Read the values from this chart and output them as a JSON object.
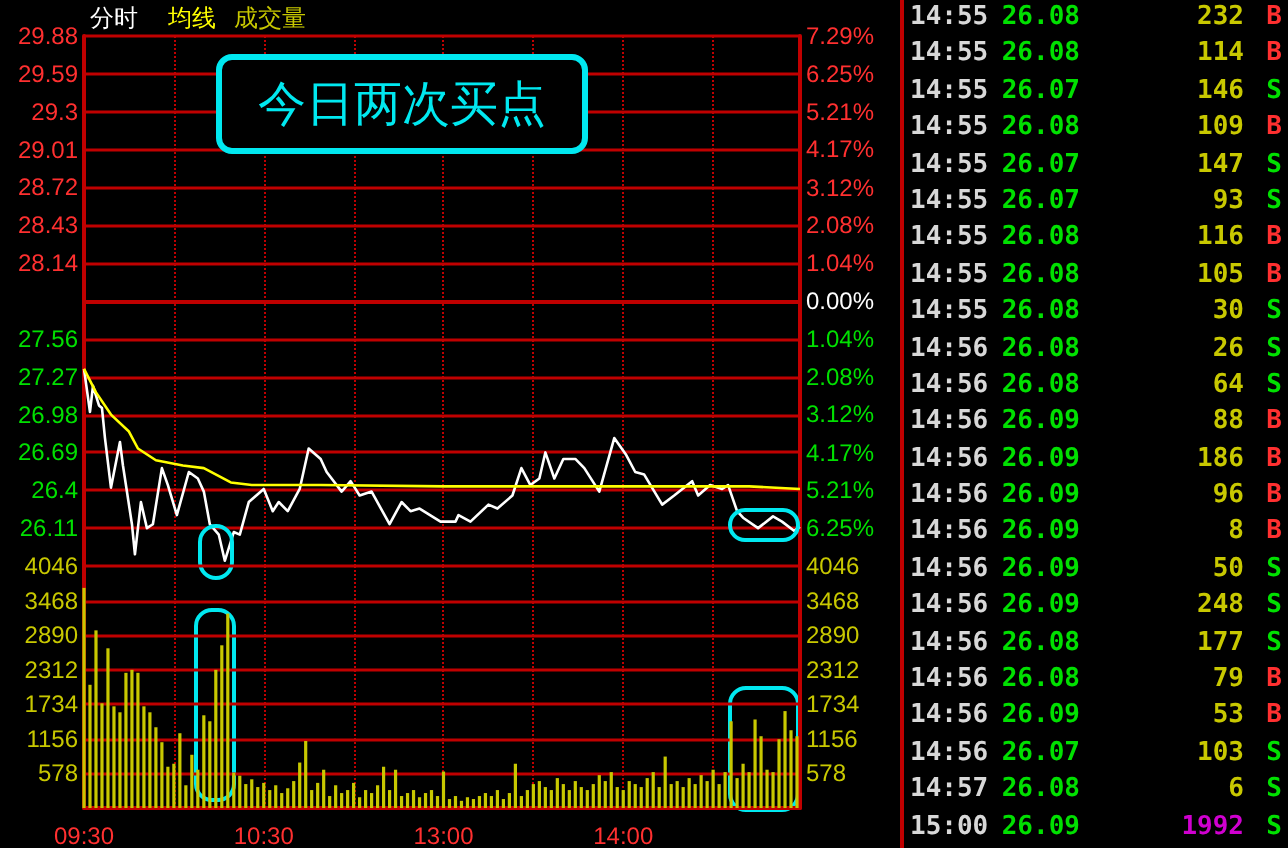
{
  "chart_data": [
    {
      "type": "line",
      "legend": "top left",
      "grid": true,
      "tick_labels": "y",
      "annotations": [
        "今日两次买点"
      ],
      "categories": [
        null,
        null,
        null,
        null,
        null,
        null,
        null,
        null,
        null,
        null,
        null,
        null,
        null,
        null,
        null,
        null,
        null,
        null,
        null,
        null,
        null,
        null,
        null,
        null,
        null,
        null,
        null,
        null,
        null,
        null,
        null,
        null,
        null,
        null,
        null,
        null,
        null,
        null,
        null,
        null,
        null,
        null,
        null,
        null,
        null,
        null,
        null,
        null,
        null,
        null,
        null,
        null,
        null,
        null,
        null,
        null,
        null,
        null,
        null,
        null,
        null,
        null,
        null,
        null,
        null,
        null,
        null,
        null,
        null,
        null,
        null,
        null,
        null,
        null,
        null,
        null,
        null,
        null,
        null,
        null,
        null,
        null,
        null,
        null,
        null,
        null,
        null,
        null,
        null,
        null,
        null,
        null,
        null,
        null,
        null,
        null,
        null,
        null,
        null,
        null,
        null,
        null,
        null,
        null,
        null,
        null,
        null,
        null,
        null,
        null,
        null,
        null,
        null,
        null,
        null,
        null,
        null,
        null,
        null,
        null,
        null,
        null,
        null,
        null,
        null,
        null,
        null,
        null,
        null,
        null,
        null,
        null,
        null,
        null,
        null,
        null,
        null,
        null,
        null,
        null,
        null,
        null,
        null,
        null,
        null,
        null,
        null,
        null,
        null,
        null,
        null,
        null,
        null,
        null,
        null,
        null,
        null,
        null,
        null,
        null,
        null,
        null,
        null,
        null,
        null,
        null,
        null,
        null,
        null,
        null,
        null,
        null,
        null,
        null,
        null,
        null,
        null,
        null,
        null,
        null,
        null,
        null,
        null,
        null,
        null,
        null,
        null,
        null,
        null,
        null,
        null,
        null,
        null,
        null,
        null,
        null,
        null,
        null,
        null,
        null,
        null,
        null,
        null,
        null,
        null,
        null,
        null,
        null,
        null,
        null,
        null,
        null,
        null,
        null,
        null,
        null,
        null,
        null,
        null,
        null,
        null,
        null,
        null,
        null,
        null,
        null,
        null,
        null,
        null,
        null,
        null,
        null,
        null,
        null,
        null,
        null,
        null,
        null,
        null,
        null
      ],
      "ylim": [
        25.82,
        29.88
      ],
      "ref_lines": [
        {
          "axis": "y",
          "value": 27.85,
          "color": "#c00000"
        }
      ],
      "yticks": [
        26.11,
        26.4,
        26.69,
        26.98,
        27.27,
        27.56,
        28.14,
        28.43,
        28.72,
        29.01,
        29.3,
        29.59,
        29.88
      ],
      "y2lim": [
        -7.29,
        7.29
      ],
      "y2ticks": [
        {
          "value": -6.25,
          "label": "6.25%"
        },
        {
          "value": -5.21,
          "label": "5.21%"
        },
        {
          "value": -4.17,
          "label": "4.17%"
        },
        {
          "value": -3.12,
          "label": "3.12%"
        },
        {
          "value": -2.08,
          "label": "2.08%"
        },
        {
          "value": -1.04,
          "label": "1.04%"
        },
        {
          "value": 0,
          "label": "0.00%"
        },
        {
          "value": 1.04,
          "label": "1.04%"
        },
        {
          "value": 2.08,
          "label": "2.08%"
        },
        {
          "value": 3.12,
          "label": "3.12%"
        },
        {
          "value": 4.17,
          "label": "4.17%"
        },
        {
          "value": 5.21,
          "label": "5.21%"
        },
        {
          "value": 6.25,
          "label": "6.25%"
        },
        {
          "value": 7.29,
          "label": "7.29%"
        }
      ],
      "series": [
        {
          "name": "分时",
          "color": "#ffffff",
          "values": [
            27.33,
            null,
            27.0,
            27.2,
            null,
            27.05,
            27.03,
            26.8,
            null,
            26.42,
            null,
            null,
            26.77,
            26.59,
            null,
            null,
            26.14,
            25.91,
            null,
            26.31,
            null,
            26.11,
            null,
            26.14,
            null,
            null,
            26.57,
            null,
            26.44,
            null,
            null,
            26.21,
            null,
            null,
            null,
            26.54,
            null,
            null,
            26.49,
            null,
            26.39,
            null,
            26.14,
            null,
            null,
            26.06,
            null,
            25.86,
            null,
            null,
            26.08,
            null,
            26.06,
            null,
            null,
            26.31,
            null,
            null,
            null,
            null,
            26.41,
            null,
            null,
            26.24,
            null,
            26.31,
            null,
            null,
            26.24,
            null,
            null,
            null,
            26.41,
            null,
            null,
            26.72,
            null,
            null,
            null,
            26.64,
            null,
            26.54,
            null,
            null,
            null,
            null,
            26.39,
            null,
            null,
            26.47,
            null,
            null,
            26.36,
            null,
            null,
            null,
            26.39,
            null,
            null,
            null,
            null,
            null,
            26.14,
            null,
            null,
            null,
            26.31,
            null,
            null,
            26.24,
            null,
            null,
            26.26,
            null,
            null,
            null,
            null,
            null,
            null,
            26.16,
            null,
            null,
            null,
            null,
            26.16,
            26.21,
            null,
            null,
            null,
            26.16,
            null,
            null,
            null,
            null,
            null,
            26.29,
            null,
            null,
            26.26,
            null,
            null,
            null,
            null,
            26.36,
            null,
            null,
            26.57,
            null,
            null,
            26.44,
            null,
            null,
            26.49,
            null,
            26.69,
            null,
            null,
            26.49,
            null,
            null,
            26.64,
            null,
            null,
            null,
            26.64,
            null,
            null,
            26.57,
            null,
            null,
            null,
            null,
            26.39,
            null,
            null,
            null,
            null,
            26.8,
            null,
            null,
            null,
            26.67,
            null,
            null,
            26.54,
            null,
            null,
            26.52,
            null,
            null,
            null,
            null,
            null,
            26.29,
            null,
            null,
            null,
            26.36,
            null,
            null,
            null,
            null,
            null,
            26.47,
            null,
            26.36,
            null,
            null,
            null,
            26.44,
            null,
            null,
            null,
            26.41,
            null,
            26.44,
            null,
            null,
            26.24,
            null,
            26.19,
            null,
            null,
            null,
            null,
            26.11,
            null,
            null,
            null,
            null,
            26.2,
            null,
            null,
            26.16,
            null,
            null,
            null,
            26.09,
            null,
            26.12
          ]
        },
        {
          "name": "均线",
          "color": "#ffff00",
          "values": [
            27.33,
            null,
            null,
            null,
            27.15,
            null,
            null,
            null,
            null,
            26.98,
            null,
            null,
            null,
            null,
            null,
            26.85,
            null,
            null,
            26.72,
            null,
            null,
            null,
            null,
            null,
            26.63,
            null,
            null,
            null,
            null,
            null,
            null,
            null,
            null,
            26.59,
            null,
            null,
            null,
            null,
            null,
            null,
            26.57,
            null,
            null,
            null,
            null,
            null,
            null,
            null,
            null,
            26.46,
            null,
            null,
            null,
            null,
            null,
            null,
            26.44,
            null,
            null,
            null,
            null,
            null,
            null,
            null,
            null,
            null,
            null,
            null,
            null,
            null,
            null,
            null,
            null,
            null,
            null,
            null,
            null,
            null,
            null,
            26.44,
            null,
            null,
            null,
            null,
            null,
            null,
            null,
            null,
            null,
            null,
            null,
            null,
            null,
            null,
            null,
            null,
            null,
            null,
            null,
            null,
            null,
            null,
            null,
            null,
            null,
            null,
            null,
            null,
            null,
            null,
            null,
            null,
            null,
            null,
            null,
            null,
            null,
            null,
            null,
            null,
            26.43,
            null,
            null,
            null,
            null,
            null,
            null,
            null,
            null,
            null,
            null,
            null,
            null,
            null,
            null,
            null,
            null,
            null,
            null,
            null,
            null,
            null,
            null,
            null,
            null,
            null,
            null,
            null,
            null,
            null,
            null,
            null,
            null,
            null,
            null,
            null,
            null,
            null,
            null,
            null,
            null,
            null,
            null,
            null,
            null,
            null,
            null,
            null,
            null,
            null,
            null,
            null,
            null,
            null,
            null,
            null,
            null,
            null,
            null,
            null,
            null,
            null,
            null,
            null,
            null,
            null,
            null,
            null,
            null,
            null,
            null,
            null,
            null,
            null,
            null,
            null,
            null,
            null,
            null,
            null,
            null,
            null,
            null,
            null,
            null,
            null,
            null,
            null,
            null,
            null,
            null,
            null,
            null,
            null,
            null,
            null,
            null,
            null,
            null,
            null,
            null,
            null,
            26.43,
            null,
            null,
            null,
            null,
            null,
            null,
            null,
            null,
            26.42,
            null,
            null,
            null,
            null,
            null,
            null,
            null,
            26.41
          ]
        }
      ]
    },
    {
      "type": "bar",
      "legend": "top left",
      "grid": true,
      "categories": [
        "09:30",
        null,
        null,
        null,
        null,
        null,
        null,
        null,
        null,
        null,
        null,
        null,
        null,
        null,
        null,
        null,
        null,
        null,
        null,
        null,
        null,
        null,
        null,
        null,
        null,
        null,
        null,
        null,
        null,
        null,
        null,
        null,
        null,
        null,
        null,
        null,
        null,
        null,
        null,
        null,
        null,
        null,
        null,
        null,
        null,
        null,
        null,
        null,
        null,
        null,
        null,
        null,
        null,
        null,
        null,
        null,
        null,
        null,
        null,
        null,
        "10:30",
        null,
        null,
        null,
        null,
        null,
        null,
        null,
        null,
        null,
        null,
        null,
        null,
        null,
        null,
        null,
        null,
        null,
        null,
        null,
        null,
        null,
        null,
        null,
        null,
        null,
        null,
        null,
        null,
        null,
        null,
        null,
        null,
        null,
        null,
        null,
        null,
        null,
        null,
        null,
        null,
        null,
        null,
        null,
        null,
        null,
        null,
        null,
        null,
        null,
        null,
        null,
        null,
        null,
        null,
        null,
        null,
        null,
        null,
        null,
        "13:00",
        null,
        null,
        null,
        null,
        null,
        null,
        null,
        null,
        null,
        null,
        null,
        null,
        null,
        null,
        null,
        null,
        null,
        null,
        null,
        null,
        null,
        null,
        null,
        null,
        null,
        null,
        null,
        null,
        null,
        null,
        null,
        null,
        null,
        null,
        null,
        null,
        null,
        null,
        null,
        null,
        null,
        null,
        null,
        null,
        null,
        null,
        null,
        null,
        null,
        null,
        null,
        null,
        null,
        null,
        null,
        null,
        null,
        null,
        null,
        "14:00",
        null,
        null,
        null,
        null,
        null,
        null,
        null,
        null,
        null,
        null,
        null,
        null,
        null,
        null,
        null,
        null,
        null,
        null,
        null,
        null,
        null,
        null,
        null,
        null,
        null,
        null,
        null,
        null,
        null,
        null,
        null,
        null,
        null,
        null,
        null,
        null,
        null,
        null,
        null,
        null,
        null,
        null,
        null,
        null,
        null,
        null,
        null,
        null,
        null,
        null,
        null,
        null,
        null,
        null,
        null,
        null,
        null,
        null,
        null
      ],
      "ylim": [
        0,
        4046
      ],
      "yticks": [
        578,
        1156,
        1734,
        2312,
        2890,
        3468,
        4046
      ],
      "y2lim": [
        0,
        4046
      ],
      "y2ticks": [
        578,
        1156,
        1734,
        2312,
        2890,
        3468,
        4046
      ],
      "series": [
        {
          "name": "成交量",
          "color": "#c8c800",
          "values": [
            3680,
            null,
            2060,
            null,
            2970,
            null,
            1750,
            null,
            2670,
            null,
            1700,
            null,
            1600,
            null,
            2260,
            null,
            2310,
            null,
            2260,
            null,
            1700,
            null,
            1600,
            null,
            1350,
            null,
            1100,
            null,
            690,
            null,
            740,
            null,
            1250,
            null,
            380,
            null,
            890,
            null,
            640,
            null,
            1550,
            null,
            1450,
            null,
            2310,
            null,
            2720,
            null,
            3250,
            null,
            590,
            null,
            540,
            null,
            400,
            null,
            480,
            null,
            350,
            null,
            420,
            null,
            300,
            null,
            380,
            null,
            250,
            null,
            330,
            null,
            450,
            null,
            760,
            null,
            1120,
            null,
            300,
            null,
            420,
            null,
            640,
            null,
            200,
            null,
            380,
            null,
            250,
            null,
            300,
            null,
            420,
            null,
            180,
            null,
            300,
            null,
            250,
            null,
            380,
            null,
            690,
            null,
            300,
            null,
            640,
            null,
            200,
            null,
            250,
            null,
            300,
            null,
            180,
            null,
            250,
            null,
            300,
            null,
            200,
            null,
            610,
            null,
            150,
            null,
            200,
            null,
            120,
            null,
            180,
            null,
            150,
            null,
            200,
            null,
            250,
            null,
            200,
            null,
            300,
            null,
            150,
            null,
            250,
            null,
            740,
            null,
            200,
            null,
            300,
            null,
            400,
            null,
            450,
            null,
            350,
            null,
            300,
            null,
            500,
            null,
            400,
            null,
            300,
            null,
            450,
            null,
            350,
            null,
            300,
            null,
            400,
            null,
            550,
            null,
            450,
            null,
            600,
            null,
            350,
            null,
            300,
            null,
            450,
            null,
            400,
            null,
            350,
            null,
            500,
            null,
            600,
            null,
            350,
            null,
            860,
            null,
            400,
            null,
            450,
            null,
            350,
            null,
            500,
            null,
            400,
            null,
            550,
            null,
            450,
            null,
            640,
            null,
            400,
            null,
            600,
            null,
            1450,
            null,
            500,
            null,
            740,
            null,
            600,
            null,
            1480,
            null,
            1200,
            null,
            640,
            null,
            600,
            null,
            1150,
            null,
            1620,
            null,
            1300,
            null,
            1200,
            null
          ]
        }
      ]
    },
    {
      "type": "other",
      "data_labels": true,
      "categories": [
        "14:55",
        "14:55",
        "14:55",
        "14:55",
        "14:55",
        "14:55",
        "14:55",
        "14:55",
        "14:55",
        "14:56",
        "14:56",
        "14:56",
        "14:56",
        "14:56",
        "14:56",
        "14:56",
        "14:56",
        "14:56",
        "14:56",
        "14:56",
        "14:56",
        "14:57",
        "15:00"
      ],
      "series": [
        {
          "color": "#00e000",
          "values": [
            26.08,
            26.08,
            26.07,
            26.08,
            26.07,
            26.07,
            26.08,
            26.08,
            26.08,
            26.08,
            26.08,
            26.09,
            26.09,
            26.09,
            26.09,
            26.09,
            26.09,
            26.08,
            26.08,
            26.09,
            26.07,
            26.08,
            26.09
          ]
        },
        {
          "color": "#c8c800",
          "colors": [
            null,
            null,
            null,
            null,
            null,
            null,
            null,
            null,
            null,
            null,
            null,
            null,
            null,
            null,
            null,
            null,
            null,
            null,
            null,
            null,
            null,
            null,
            "#d000d0"
          ],
          "values": [
            232,
            114,
            146,
            109,
            147,
            93,
            116,
            105,
            30,
            26,
            64,
            88,
            186,
            96,
            8,
            50,
            248,
            177,
            79,
            53,
            103,
            6,
            1992
          ]
        }
      ],
      "annotations": [
        "B",
        "B",
        "S",
        "B",
        "S",
        "S",
        "B",
        "B",
        "S",
        "S",
        "S",
        "B",
        "B",
        "B",
        "B",
        "S",
        "S",
        "S",
        "B",
        "B",
        "S",
        "S",
        "S"
      ],
      "colors": [
        "#ff3030",
        "#ff3030",
        "#00e000",
        "#ff3030",
        "#00e000",
        "#00e000",
        "#ff3030",
        "#ff3030",
        "#00e000",
        "#00e000",
        "#00e000",
        "#ff3030",
        "#ff3030",
        "#ff3030",
        "#ff3030",
        "#00e000",
        "#00e000",
        "#00e000",
        "#ff3030",
        "#ff3030",
        "#00e000",
        "#00e000",
        "#00e000"
      ]
    }
  ]
}
